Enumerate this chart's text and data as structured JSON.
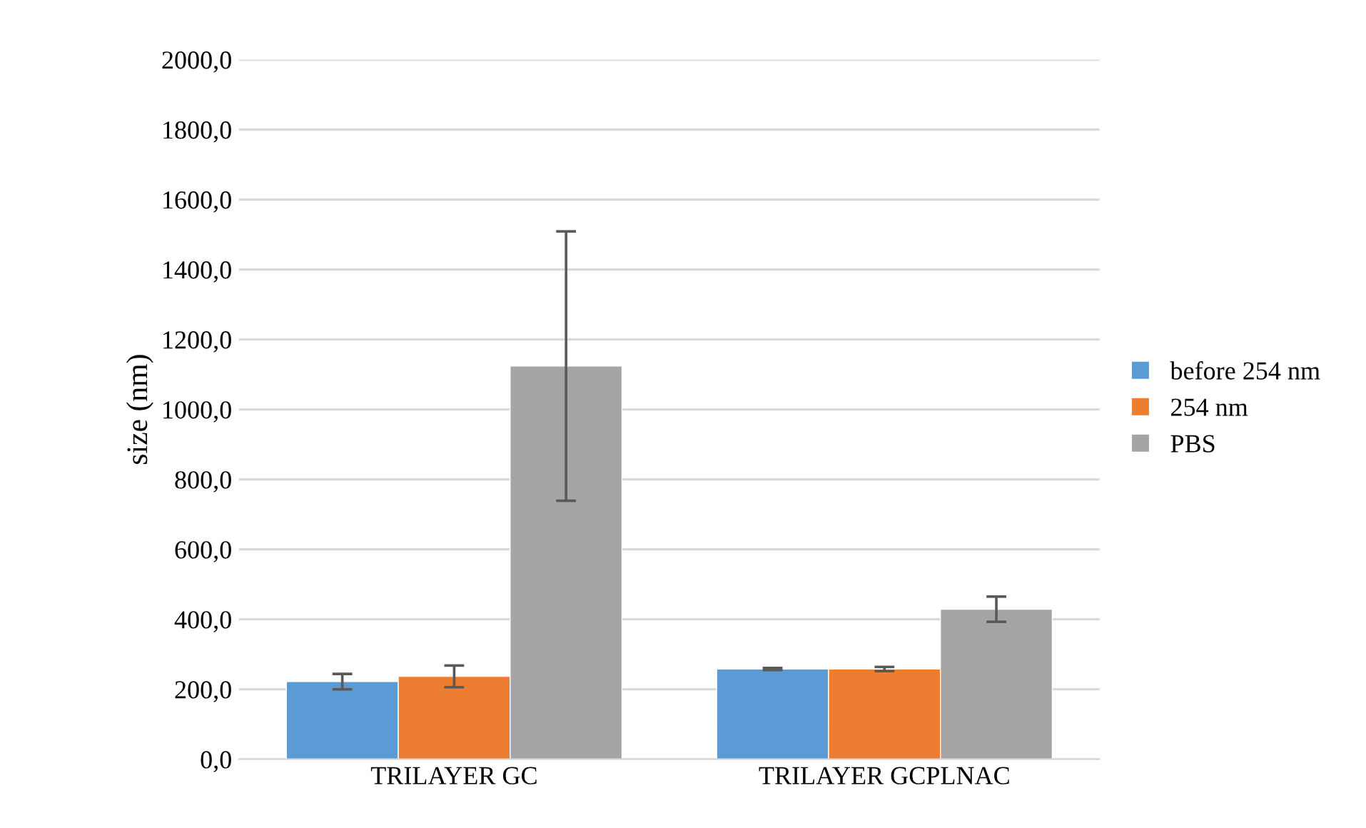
{
  "chart_data": {
    "type": "bar",
    "ylabel": "size (nm)",
    "categories": [
      "TRILAYER GC",
      "TRILAYER GCPLNAC"
    ],
    "series": [
      {
        "name": "before 254 nm",
        "color": "#5b9bd5",
        "values": [
          222,
          258
        ],
        "errors": [
          22,
          3
        ]
      },
      {
        "name": "254 nm",
        "color": "#ed7d31",
        "values": [
          237,
          258
        ],
        "errors": [
          31,
          6
        ]
      },
      {
        "name": "PBS",
        "color": "#a5a5a5",
        "values": [
          1124,
          429
        ],
        "errors": [
          385,
          36
        ]
      }
    ],
    "ylim": [
      0,
      2000
    ],
    "yticks": [
      {
        "value": 0,
        "label": "0,0"
      },
      {
        "value": 200,
        "label": "200,0"
      },
      {
        "value": 400,
        "label": "400,0"
      },
      {
        "value": 600,
        "label": "600,0"
      },
      {
        "value": 800,
        "label": "800,0"
      },
      {
        "value": 1000,
        "label": "1000,0"
      },
      {
        "value": 1200,
        "label": "1200,0"
      },
      {
        "value": 1400,
        "label": "1400,0"
      },
      {
        "value": 1600,
        "label": "1600,0"
      },
      {
        "value": 1800,
        "label": "1800,0"
      },
      {
        "value": 2000,
        "label": "2000,0"
      }
    ],
    "grid": "y",
    "legend": "right"
  }
}
